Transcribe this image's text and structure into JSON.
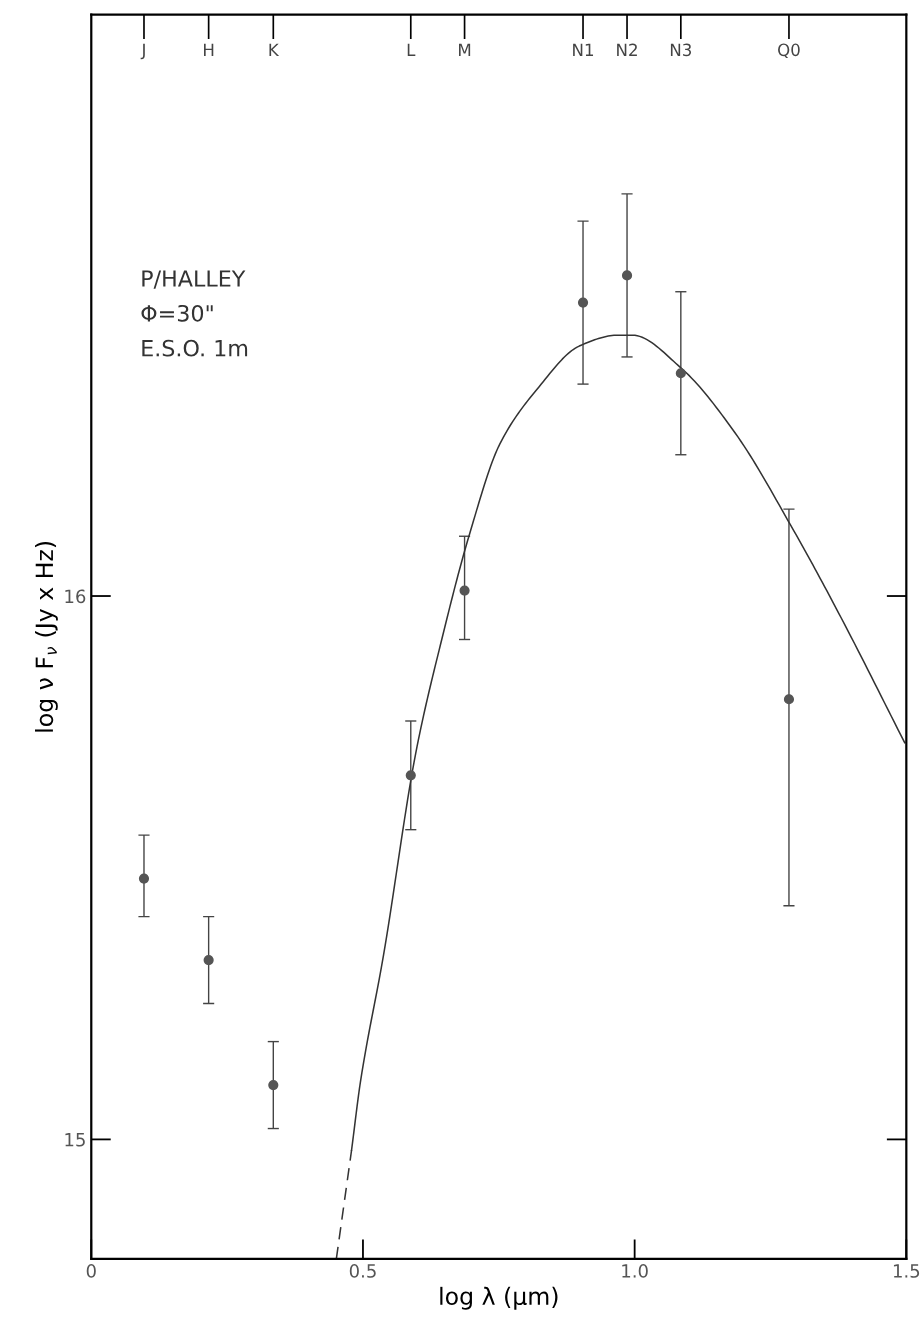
{
  "chart_data": {
    "type": "scatter",
    "xlabel": "log λ (μm)",
    "ylabel": "log ν F$_{ν}$ (Jy x Hz)",
    "xlim": [
      0,
      1.5
    ],
    "xticks": [
      0,
      0.5,
      {
        "value": 1.0,
        "label": "1.0"
      },
      1.5
    ],
    "ylim": [
      14.78,
      17.07
    ],
    "yticks": [
      15,
      16
    ],
    "grid": false,
    "legend": false,
    "annotations": [
      "P/HALLEY",
      "Φ=30\"",
      "E.S.O. 1m"
    ],
    "ref_lines": [
      {
        "axis": "x",
        "value": 0.097,
        "label": "J"
      },
      {
        "axis": "x",
        "value": 0.216,
        "label": "H"
      },
      {
        "axis": "x",
        "value": 0.335,
        "label": "K"
      },
      {
        "axis": "x",
        "value": 0.588,
        "label": "L"
      },
      {
        "axis": "x",
        "value": 0.687,
        "label": "M"
      },
      {
        "axis": "x",
        "value": 0.905,
        "label": "N1"
      },
      {
        "axis": "x",
        "value": 0.986,
        "label": "N2"
      },
      {
        "axis": "x",
        "value": 1.085,
        "label": "N3"
      },
      {
        "axis": "x",
        "value": 1.284,
        "label": "Q0"
      }
    ],
    "series": [
      {
        "color": "#555555",
        "marker": "circle",
        "x": [
          0.097,
          0.216,
          0.335,
          0.588,
          0.687,
          0.905,
          0.986,
          1.085,
          1.284
        ],
        "values": [
          15.48,
          15.33,
          15.1,
          15.67,
          16.01,
          16.54,
          16.59,
          16.41,
          15.81
        ],
        "errors": [
          [
            15.41,
            15.56
          ],
          [
            15.25,
            15.41
          ],
          [
            15.02,
            15.18
          ],
          [
            15.57,
            15.77
          ],
          [
            15.92,
            16.11
          ],
          [
            16.39,
            16.69
          ],
          [
            16.44,
            16.74
          ],
          [
            16.26,
            16.56
          ],
          [
            15.43,
            16.16
          ]
        ]
      },
      {
        "type": "line",
        "color": "#333333",
        "line_style": "dashed",
        "marker": "none",
        "x": [
          0.451,
          0.479
        ],
        "values": [
          14.78,
          14.98
        ]
      },
      {
        "type": "line",
        "color": "#333333",
        "line_style": "solid",
        "marker": "none",
        "x": [
          0.479,
          0.496,
          0.538,
          0.597,
          0.645,
          0.695,
          0.752,
          0.82,
          0.898,
          0.969,
          0.996,
          1.085,
          1.185,
          1.293,
          1.38,
          1.497
        ],
        "values": [
          14.98,
          15.11,
          15.34,
          15.71,
          15.92,
          16.11,
          16.28,
          16.38,
          16.46,
          16.48,
          16.48,
          16.42,
          16.3,
          16.12,
          15.96,
          15.73
        ]
      }
    ]
  }
}
